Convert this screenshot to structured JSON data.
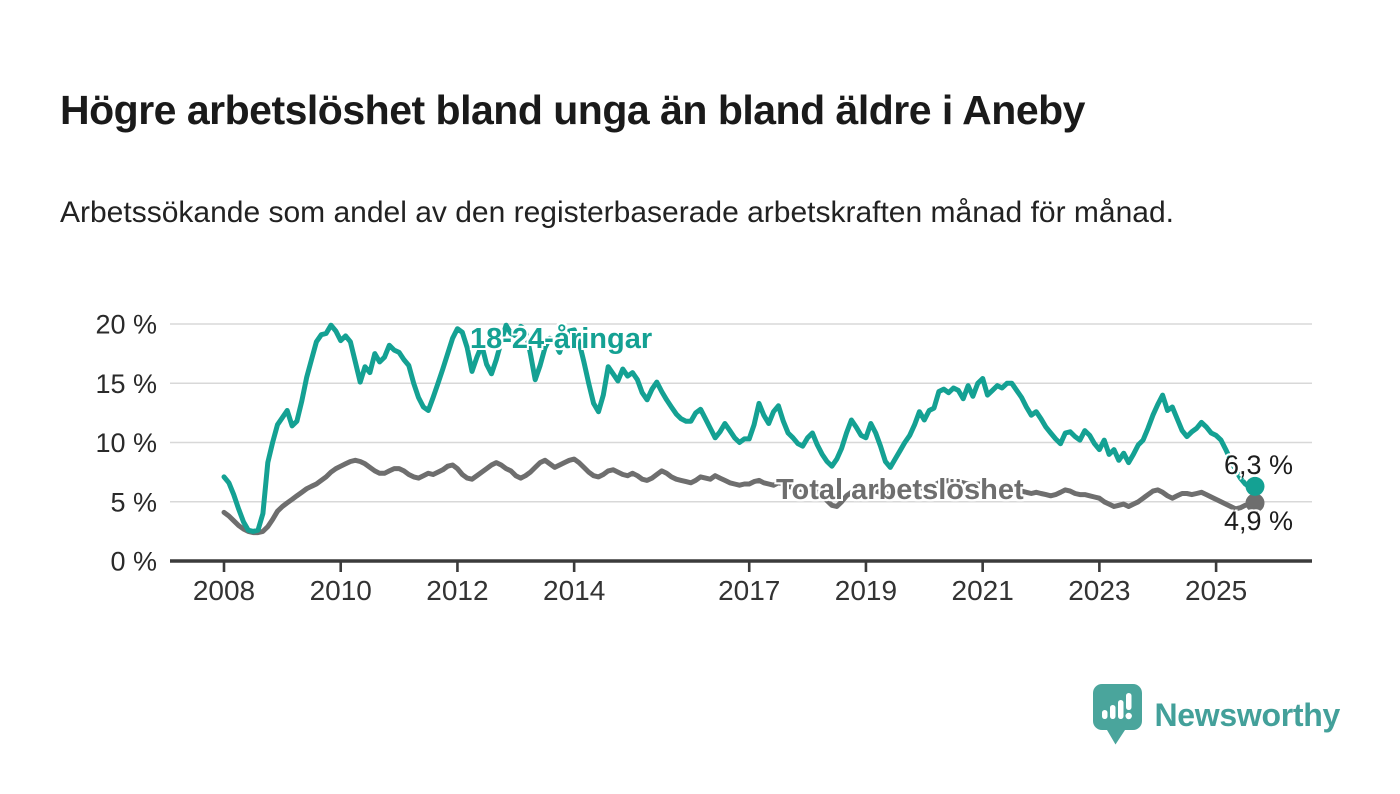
{
  "header": {
    "title": "Högre arbetslöshet bland unga än bland äldre i Aneby",
    "subtitle": "Arbetssökande som andel av den registerbaserade arbetskraften månad för månad."
  },
  "chart_data": {
    "type": "line",
    "title": "Högre arbetslöshet bland unga än bland äldre i Aneby",
    "unit": "%",
    "frequency": "monthly",
    "x_start": "2008-01",
    "x_end": "2025-09",
    "ylim": [
      0,
      21
    ],
    "grid": "horizontal",
    "y_ticks": [
      0,
      5,
      10,
      15,
      20
    ],
    "y_tick_suffix": " %",
    "x_tick_years": [
      2008,
      2010,
      2012,
      2014,
      2017,
      2019,
      2021,
      2023,
      2025
    ],
    "series": [
      {
        "name": "18-24-åringar",
        "color": "#14a193",
        "end_label": "6,3 %",
        "end_value": 6.3,
        "values": [
          7.1,
          6.6,
          5.6,
          4.4,
          3.3,
          2.6,
          2.5,
          2.6,
          4.0,
          8.3,
          10.0,
          11.5,
          12.1,
          12.7,
          11.4,
          11.8,
          13.5,
          15.5,
          17.0,
          18.5,
          19.1,
          19.2,
          19.9,
          19.4,
          18.6,
          19.0,
          18.5,
          16.8,
          15.1,
          16.4,
          15.9,
          17.5,
          16.8,
          17.2,
          18.2,
          17.8,
          17.6,
          17.0,
          16.5,
          15.0,
          13.8,
          13.0,
          12.7,
          13.8,
          15.0,
          16.2,
          17.5,
          18.8,
          19.6,
          19.3,
          18.0,
          16.0,
          17.2,
          18.2,
          16.6,
          15.8,
          17.0,
          18.5,
          19.9,
          19.2,
          19.0,
          19.8,
          19.5,
          17.5,
          15.3,
          16.5,
          18.0,
          18.8,
          18.4,
          17.6,
          18.9,
          19.4,
          19.5,
          18.5,
          16.8,
          15.0,
          13.3,
          12.6,
          14.0,
          16.4,
          15.8,
          15.2,
          16.2,
          15.6,
          15.9,
          15.3,
          14.2,
          13.6,
          14.5,
          15.1,
          14.3,
          13.6,
          13.0,
          12.4,
          12.0,
          11.8,
          11.8,
          12.5,
          12.8,
          12.0,
          11.2,
          10.4,
          10.9,
          11.6,
          11.0,
          10.4,
          10.0,
          10.3,
          10.3,
          11.5,
          13.3,
          12.3,
          11.6,
          12.6,
          13.1,
          11.8,
          10.8,
          10.4,
          9.9,
          9.7,
          10.4,
          10.8,
          9.8,
          9.0,
          8.4,
          8.0,
          8.6,
          9.5,
          10.8,
          11.9,
          11.3,
          10.6,
          10.4,
          11.6,
          10.8,
          9.7,
          8.4,
          7.9,
          8.6,
          9.3,
          10.0,
          10.6,
          11.5,
          12.6,
          11.9,
          12.7,
          12.9,
          14.3,
          14.5,
          14.2,
          14.6,
          14.4,
          13.7,
          14.8,
          13.9,
          15.0,
          15.4,
          14.0,
          14.4,
          14.8,
          14.6,
          15.0,
          15.0,
          14.4,
          13.8,
          13.0,
          12.3,
          12.6,
          12.0,
          11.3,
          10.8,
          10.3,
          9.9,
          10.8,
          10.9,
          10.5,
          10.2,
          11.0,
          10.6,
          9.9,
          9.4,
          10.2,
          9.0,
          9.4,
          8.5,
          9.1,
          8.3,
          9.0,
          9.8,
          10.2,
          11.2,
          12.3,
          13.2,
          14.0,
          12.7,
          13.0,
          12.0,
          11.0,
          10.5,
          10.9,
          11.2,
          11.7,
          11.3,
          10.8,
          10.6,
          10.2,
          9.4,
          8.5,
          7.7,
          7.0,
          6.5,
          6.2,
          6.3
        ]
      },
      {
        "name": "Total arbetslöshet",
        "color": "#6e6e6e",
        "end_label": "4,9 %",
        "end_value": 4.9,
        "values": [
          4.1,
          3.8,
          3.4,
          3.0,
          2.7,
          2.5,
          2.4,
          2.4,
          2.5,
          2.9,
          3.5,
          4.2,
          4.6,
          4.9,
          5.2,
          5.5,
          5.8,
          6.1,
          6.3,
          6.5,
          6.8,
          7.1,
          7.5,
          7.8,
          8.0,
          8.2,
          8.4,
          8.5,
          8.4,
          8.2,
          7.9,
          7.6,
          7.4,
          7.4,
          7.6,
          7.8,
          7.8,
          7.6,
          7.3,
          7.1,
          7.0,
          7.2,
          7.4,
          7.3,
          7.5,
          7.7,
          8.0,
          8.1,
          7.8,
          7.3,
          7.0,
          6.9,
          7.2,
          7.5,
          7.8,
          8.1,
          8.3,
          8.1,
          7.8,
          7.6,
          7.2,
          7.0,
          7.2,
          7.5,
          7.9,
          8.3,
          8.5,
          8.2,
          7.9,
          8.1,
          8.3,
          8.5,
          8.6,
          8.3,
          7.9,
          7.5,
          7.2,
          7.1,
          7.3,
          7.6,
          7.7,
          7.5,
          7.3,
          7.2,
          7.4,
          7.2,
          6.9,
          6.8,
          7.0,
          7.3,
          7.6,
          7.4,
          7.1,
          6.9,
          6.8,
          6.7,
          6.6,
          6.8,
          7.1,
          7.0,
          6.9,
          7.2,
          7.0,
          6.8,
          6.6,
          6.5,
          6.4,
          6.5,
          6.5,
          6.7,
          6.8,
          6.6,
          6.5,
          6.4,
          6.6,
          6.5,
          6.3,
          6.2,
          6.1,
          6.0,
          6.1,
          6.0,
          5.8,
          5.5,
          5.1,
          4.7,
          4.6,
          5.0,
          5.5,
          5.8,
          5.9,
          5.8,
          5.9,
          6.0,
          5.9,
          5.8,
          5.7,
          5.6,
          5.7,
          5.8,
          5.9,
          6.0,
          6.1,
          6.2,
          6.1,
          6.2,
          6.4,
          6.6,
          6.7,
          6.8,
          6.8,
          6.7,
          6.6,
          6.5,
          6.4,
          6.5,
          6.5,
          6.4,
          6.3,
          6.2,
          6.1,
          6.2,
          6.1,
          6.0,
          5.9,
          5.8,
          5.7,
          5.8,
          5.7,
          5.6,
          5.5,
          5.6,
          5.8,
          6.0,
          5.9,
          5.7,
          5.6,
          5.6,
          5.5,
          5.4,
          5.3,
          5.0,
          4.8,
          4.6,
          4.7,
          4.8,
          4.6,
          4.8,
          5.0,
          5.3,
          5.6,
          5.9,
          6.0,
          5.8,
          5.5,
          5.3,
          5.5,
          5.7,
          5.7,
          5.6,
          5.7,
          5.8,
          5.6,
          5.4,
          5.2,
          5.0,
          4.8,
          4.6,
          4.4,
          4.5,
          4.7,
          4.8,
          4.9
        ]
      }
    ],
    "colors": {
      "grid": "#d8d8d8",
      "axis": "#3b3b3b",
      "tick_text": "#333333",
      "y_label_text": "#2a2a2a"
    }
  },
  "footer": {
    "brand": "Newsworthy"
  }
}
